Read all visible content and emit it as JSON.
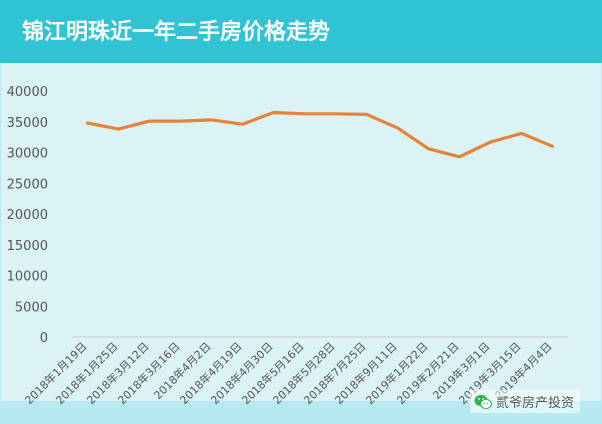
{
  "header": {
    "title": "锦江明珠近一年二手房价格走势"
  },
  "watermark": {
    "text": "贰爷房产投资",
    "icon": "wechat-logo-icon"
  },
  "colors": {
    "header": "#2fc3d3",
    "background": "#dbf3f6",
    "line": "#e8823a",
    "axis_text": "#555555"
  },
  "chart_data": {
    "type": "line",
    "title": "",
    "xlabel": "",
    "ylabel": "",
    "ylim": [
      0,
      40000
    ],
    "yticks": [
      "0",
      "5000",
      "10000",
      "15000",
      "20000",
      "25000",
      "30000",
      "35000",
      "40000"
    ],
    "grid": false,
    "categories": [
      "2018年1月19日",
      "2018年1月25日",
      "2018年3月12日",
      "2018年3月16日",
      "2018年4月2日",
      "2018年4月19日",
      "2018年4月30日",
      "2018年5月16日",
      "2018年5月28日",
      "2018年7月25日",
      "2018年9月11日",
      "2019年1月22日",
      "2019年2月21日",
      "2019年3月1日",
      "2019年3月15日",
      "2019年4月4日"
    ],
    "series": [
      {
        "values": [
          34800,
          33800,
          35100,
          35100,
          35300,
          34600,
          36500,
          36300,
          36300,
          36200,
          34000,
          30600,
          29300,
          31700,
          33100,
          31000
        ]
      }
    ]
  }
}
